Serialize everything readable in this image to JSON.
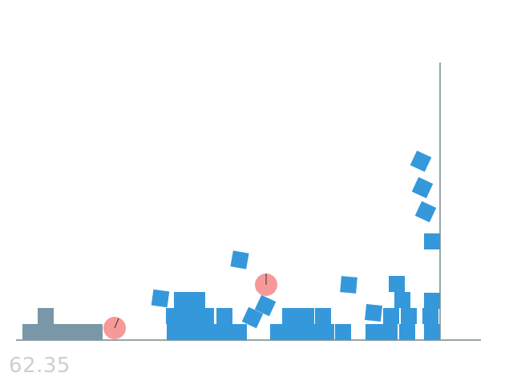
{
  "hud": {
    "timer": "62.35"
  },
  "colors": {
    "background": "#ffffff",
    "box": "#3598db",
    "platform": "#7a97a7",
    "ball": "#f79999",
    "ground": "#95a5a6",
    "timer": "#cfcfcf"
  },
  "entities": {
    "balls": [
      {
        "id": "ball-left",
        "angle_deg": 25
      },
      {
        "id": "ball-middle",
        "angle_deg": 0
      }
    ]
  }
}
